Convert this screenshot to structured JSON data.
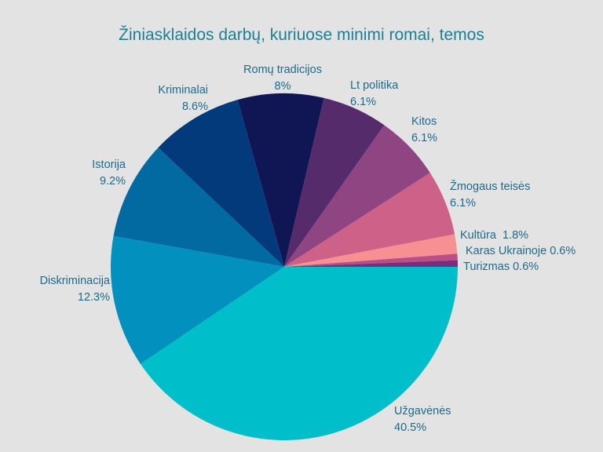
{
  "chart_data": {
    "type": "pie",
    "title": "Žiniasklaidos darbų, kuriuose minimi romai, temos",
    "start_angle_deg": 0,
    "direction": "clockwise",
    "slices": [
      {
        "label": "Užgavėnės",
        "value": 40.5,
        "value_label": "40.5%",
        "color": "#00bfca"
      },
      {
        "label": "Diskriminacija",
        "value": 12.3,
        "value_label": "12.3%",
        "color": "#0290be"
      },
      {
        "label": "Istorija",
        "value": 9.2,
        "value_label": "9.2%",
        "color": "#026aa1"
      },
      {
        "label": "Kriminalai",
        "value": 8.6,
        "value_label": "8.6%",
        "color": "#023a7b"
      },
      {
        "label": "Romų tradicijos",
        "value": 8,
        "value_label": "8%",
        "color": "#101554"
      },
      {
        "label": "Lt politika",
        "value": 6.1,
        "value_label": "6.1%",
        "color": "#562b6b"
      },
      {
        "label": "Kitos",
        "value": 6.1,
        "value_label": "6.1%",
        "color": "#8f4582"
      },
      {
        "label": "Žmogaus teisės",
        "value": 6.1,
        "value_label": "6.1%",
        "color": "#cd6188"
      },
      {
        "label": "Kultūra",
        "value": 1.8,
        "value_label": "1.8%",
        "color": "#f69092"
      },
      {
        "label": "Karas Ukrainoje",
        "value": 0.6,
        "value_label": "0.6%",
        "color": "#b94f85"
      },
      {
        "label": "Turizmas",
        "value": 0.6,
        "value_label": "0.6%",
        "color": "#7a2d7e"
      }
    ]
  }
}
